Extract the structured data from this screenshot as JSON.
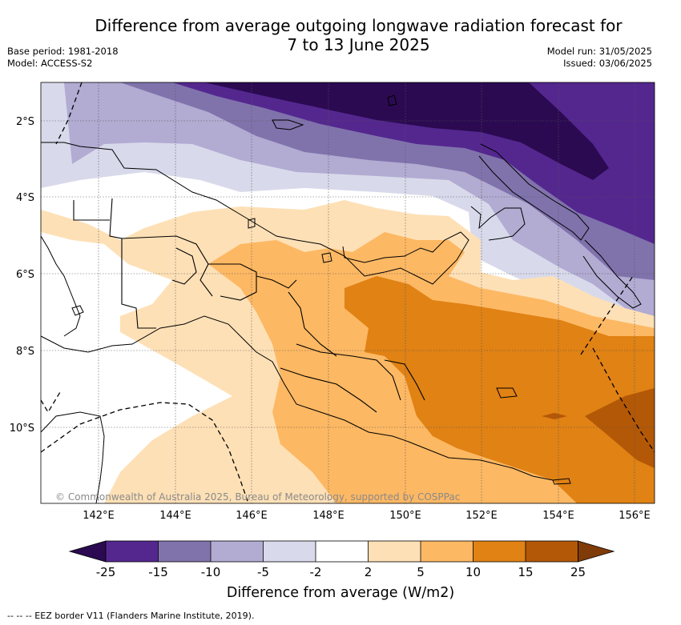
{
  "title_line1": "Difference from average outgoing longwave radiation forecast for",
  "title_line2": "7 to 13 June 2025",
  "base_period": "Base period: 1981-2018",
  "model": "Model: ACCESS-S2",
  "model_run": "Model run: 31/05/2025",
  "issued": "Issued: 03/06/2025",
  "copyright": "© Commonwealth of Australia 2025, Bureau of Meteorology, supported by COSPPac",
  "lon_ticks": [
    "142°E",
    "144°E",
    "146°E",
    "148°E",
    "150°E",
    "152°E",
    "154°E",
    "156°E"
  ],
  "lat_ticks": [
    "2°S",
    "4°S",
    "6°S",
    "8°S",
    "10°S"
  ],
  "colorbar_ticks": [
    "-25",
    "-15",
    "-10",
    "-5",
    "-2",
    "2",
    "5",
    "10",
    "15",
    "25"
  ],
  "colorbar_unit": "Difference from average (W/m2)",
  "legend_text": "-- -- -- EEZ border V11 (Flanders Marine Institute, 2019).",
  "colors": {
    "lt_-25": "#2b0a52",
    "m25_m15": "#54278f",
    "m15_m10": "#8073ac",
    "m10_m5": "#b2abd2",
    "m5_m2": "#d8daeb",
    "m2_2": "#ffffff",
    "p2_p5": "#fee0b6",
    "p5_p10": "#fdb863",
    "p10_p15": "#e08214",
    "p15_p25": "#b35806",
    "gt_25": "#7f3b08"
  }
}
